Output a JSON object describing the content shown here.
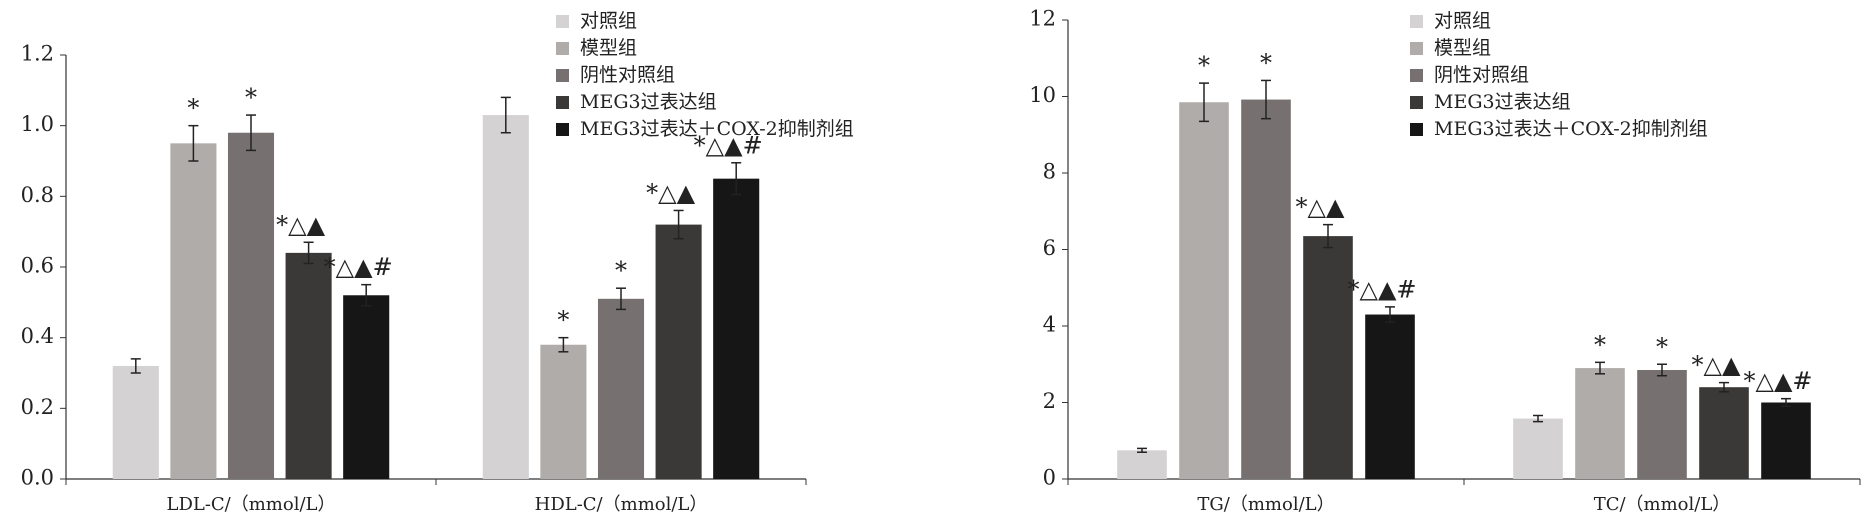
{
  "chart_data": [
    {
      "type": "bar",
      "categories": [
        "LDL-C/（mmol/L）",
        "HDL-C/（mmol/L）"
      ],
      "series": [
        {
          "name": "对照组",
          "color": "#d4d2d3",
          "values": [
            0.32,
            1.03
          ],
          "errors": [
            0.02,
            0.05
          ],
          "annotations": [
            null,
            null
          ]
        },
        {
          "name": "模型组",
          "color": "#b0aca9",
          "values": [
            0.95,
            0.38
          ],
          "errors": [
            0.05,
            0.02
          ],
          "annotations": [
            "*",
            "*"
          ]
        },
        {
          "name": "阴性对照组",
          "color": "#767170",
          "values": [
            0.98,
            0.51
          ],
          "errors": [
            0.05,
            0.03
          ],
          "annotations": [
            "*",
            "*"
          ]
        },
        {
          "name": "MEG3过表达组",
          "color": "#3b3938",
          "values": [
            0.64,
            0.72
          ],
          "errors": [
            0.03,
            0.04
          ],
          "annotations": [
            "*△▲",
            "*△▲"
          ]
        },
        {
          "name": "MEG3过表达＋COX-2抑制剂组",
          "color": "#161616",
          "values": [
            0.52,
            0.85
          ],
          "errors": [
            0.03,
            0.045
          ],
          "annotations": [
            "*△▲#",
            "*△▲#"
          ]
        }
      ],
      "ylim": [
        0,
        1.2
      ],
      "yticks": [
        {
          "value": 0,
          "label": "0.0"
        },
        0.2,
        0.4,
        0.6,
        0.8,
        {
          "value": 1,
          "label": "1.0"
        },
        1.2
      ]
    },
    {
      "type": "bar",
      "categories": [
        "TG/（mmol/L）",
        "TC/（mmol/L）"
      ],
      "series": [
        {
          "name": "对照组",
          "color": "#d4d2d3",
          "values": [
            0.75,
            1.58
          ],
          "errors": [
            0.05,
            0.08
          ],
          "annotations": [
            null,
            null
          ]
        },
        {
          "name": "模型组",
          "color": "#b0aca9",
          "values": [
            9.85,
            2.9
          ],
          "errors": [
            0.5,
            0.15
          ],
          "annotations": [
            "*",
            "*"
          ]
        },
        {
          "name": "阴性对照组",
          "color": "#767170",
          "values": [
            9.92,
            2.85
          ],
          "errors": [
            0.5,
            0.15
          ],
          "annotations": [
            "*",
            "*"
          ]
        },
        {
          "name": "MEG3过表达组",
          "color": "#3b3938",
          "values": [
            6.35,
            2.4
          ],
          "errors": [
            0.3,
            0.12
          ],
          "annotations": [
            "*△▲",
            "*△▲"
          ]
        },
        {
          "name": "MEG3过表达＋COX-2抑制剂组",
          "color": "#161616",
          "values": [
            4.3,
            2.0
          ],
          "errors": [
            0.2,
            0.1
          ],
          "annotations": [
            "*△▲#",
            "*△▲#"
          ]
        }
      ],
      "ylim": [
        0,
        12
      ],
      "yticks": [
        0,
        2,
        4,
        6,
        8,
        10,
        12
      ]
    }
  ]
}
